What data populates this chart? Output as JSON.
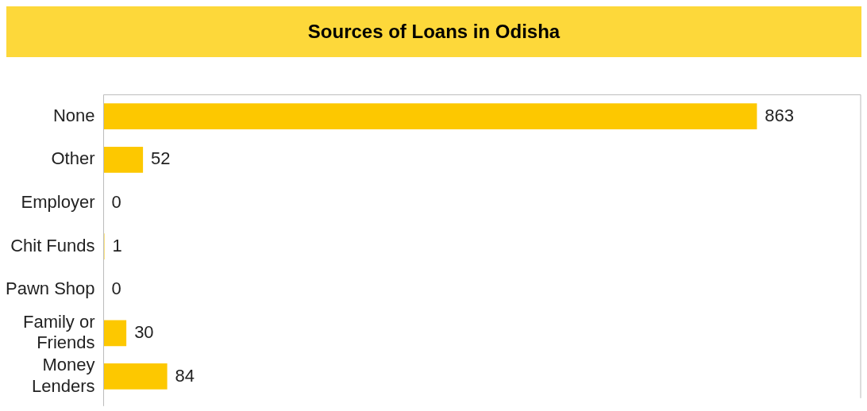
{
  "chart_data": {
    "type": "bar",
    "orientation": "horizontal",
    "title": "Sources of Loans in Odisha",
    "categories": [
      "None",
      "Other",
      "Employer",
      "Chit Funds",
      "Pawn Shop",
      "Family or Friends",
      "Money Lenders"
    ],
    "values": [
      863,
      52,
      0,
      1,
      0,
      30,
      84
    ],
    "color": "#fdc800",
    "data_labels": true,
    "legend": false,
    "tick_labels": "y"
  }
}
